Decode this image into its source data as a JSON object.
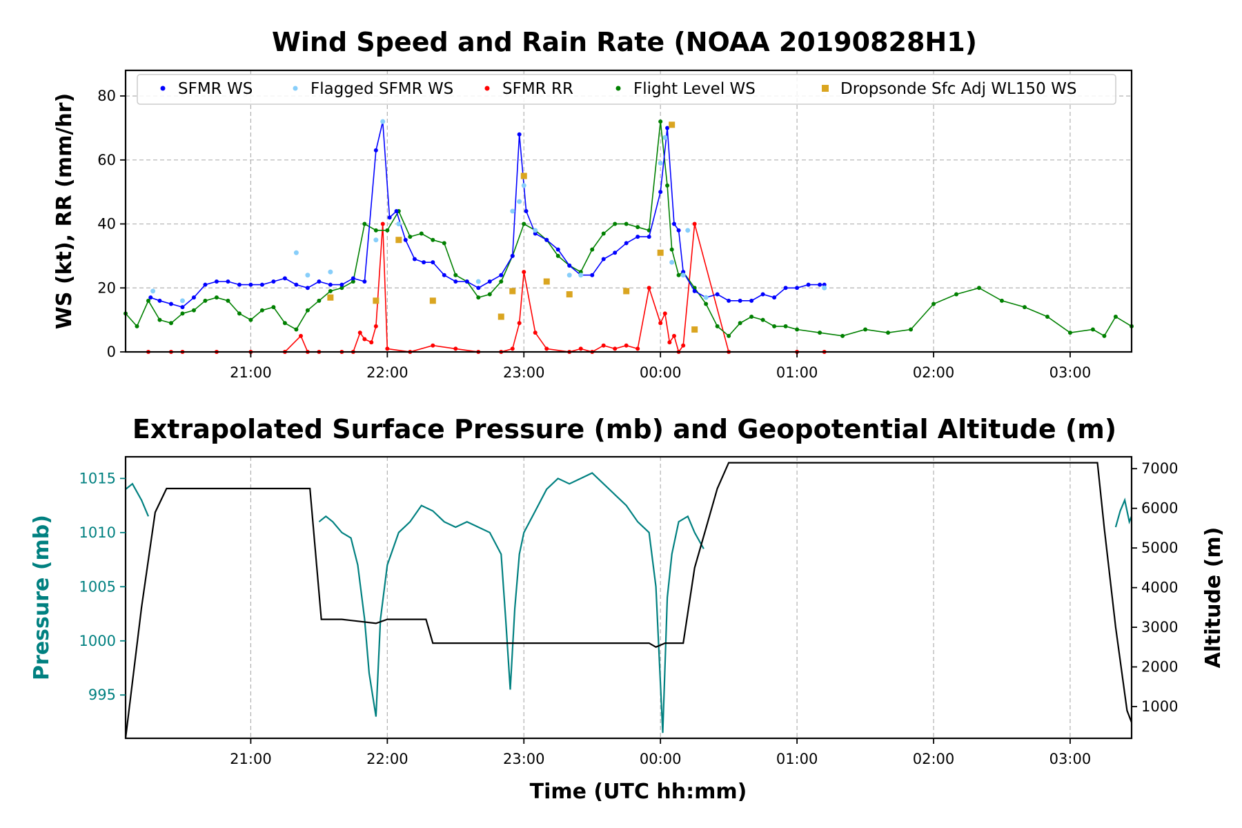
{
  "chart_data": [
    {
      "type": "scatter",
      "title": "Wind Speed and Rain Rate (NOAA 20190828H1)",
      "xlabel": "",
      "ylabel": "WS (kt), RR (mm/hr)",
      "xlim": [
        "20:05",
        "03:27"
      ],
      "ylim": [
        0,
        88
      ],
      "x_ticks": [
        "21:00",
        "22:00",
        "23:00",
        "00:00",
        "01:00",
        "02:00",
        "03:00"
      ],
      "y_ticks": [
        "0",
        "20",
        "40",
        "60",
        "80"
      ],
      "grid": true,
      "legend_position": "top",
      "legend": [
        "SFMR WS",
        "Flagged SFMR WS",
        "SFMR RR",
        "Flight Level WS",
        "Dropsonde Sfc Adj WL150 WS"
      ],
      "colors": {
        "sfmr_ws": "#0000ff",
        "flagged_sfmr_ws": "#87cefa",
        "sfmr_rr": "#ff0000",
        "flight_level_ws": "#008000",
        "dropsonde": "#daa520"
      },
      "series": [
        {
          "name": "SFMR WS",
          "x": [
            "20:16",
            "20:20",
            "20:25",
            "20:30",
            "20:35",
            "20:40",
            "20:45",
            "20:50",
            "20:55",
            "21:00",
            "21:05",
            "21:10",
            "21:15",
            "21:20",
            "21:25",
            "21:30",
            "21:35",
            "21:40",
            "21:45",
            "21:50",
            "21:55",
            "21:58",
            "22:01",
            "22:04",
            "22:08",
            "22:12",
            "22:16",
            "22:20",
            "22:25",
            "22:30",
            "22:35",
            "22:40",
            "22:45",
            "22:50",
            "22:55",
            "22:58",
            "23:01",
            "23:05",
            "23:10",
            "23:15",
            "23:20",
            "23:25",
            "23:30",
            "23:35",
            "23:40",
            "23:45",
            "23:50",
            "23:55",
            "00:00",
            "00:03",
            "00:06",
            "00:08",
            "00:10",
            "00:15",
            "00:20",
            "00:25",
            "00:30",
            "00:35",
            "00:40",
            "00:45",
            "00:50",
            "00:55",
            "01:00",
            "01:05",
            "01:10",
            "01:12"
          ],
          "values": [
            17,
            16,
            15,
            14,
            17,
            21,
            22,
            22,
            21,
            21,
            21,
            22,
            23,
            21,
            20,
            22,
            21,
            21,
            23,
            22,
            63,
            72,
            42,
            44,
            35,
            29,
            28,
            28,
            24,
            22,
            22,
            20,
            22,
            24,
            30,
            68,
            44,
            37,
            35,
            32,
            27,
            24,
            24,
            29,
            31,
            34,
            36,
            36,
            50,
            70,
            40,
            38,
            25,
            19,
            17,
            18,
            16,
            16,
            16,
            18,
            17,
            20,
            20,
            21,
            21,
            21
          ]
        },
        {
          "name": "Flagged SFMR WS",
          "x": [
            "20:17",
            "20:30",
            "21:20",
            "21:25",
            "21:35",
            "21:55",
            "21:58",
            "22:05",
            "22:40",
            "22:55",
            "22:58",
            "23:00",
            "23:05",
            "23:20",
            "23:25",
            "00:00",
            "00:02",
            "00:05",
            "00:10",
            "00:12",
            "00:20",
            "01:12"
          ],
          "values": [
            19,
            16,
            31,
            24,
            25,
            35,
            72,
            40,
            22,
            44,
            47,
            52,
            38,
            24,
            24,
            59,
            67,
            28,
            24,
            38,
            17,
            20
          ]
        },
        {
          "name": "SFMR RR",
          "x": [
            "20:15",
            "20:25",
            "20:30",
            "20:45",
            "21:00",
            "21:15",
            "21:22",
            "21:25",
            "21:30",
            "21:40",
            "21:45",
            "21:48",
            "21:50",
            "21:53",
            "21:55",
            "21:58",
            "22:00",
            "22:10",
            "22:20",
            "22:30",
            "22:40",
            "22:50",
            "22:55",
            "22:58",
            "23:00",
            "23:05",
            "23:10",
            "23:20",
            "23:25",
            "23:30",
            "23:35",
            "23:40",
            "23:45",
            "23:50",
            "23:55",
            "00:00",
            "00:02",
            "00:04",
            "00:06",
            "00:08",
            "00:10",
            "00:15",
            "00:30",
            "01:00",
            "01:12"
          ],
          "values": [
            0,
            0,
            0,
            0,
            0,
            0,
            5,
            0,
            0,
            0,
            0,
            6,
            4,
            3,
            8,
            40,
            1,
            0,
            2,
            1,
            0,
            0,
            1,
            9,
            25,
            6,
            1,
            0,
            1,
            0,
            2,
            1,
            2,
            1,
            20,
            9,
            12,
            3,
            5,
            0,
            2,
            40,
            0,
            0,
            0
          ]
        },
        {
          "name": "Flight Level WS",
          "x": [
            "20:05",
            "20:10",
            "20:15",
            "20:20",
            "20:25",
            "20:30",
            "20:35",
            "20:40",
            "20:45",
            "20:50",
            "20:55",
            "21:00",
            "21:05",
            "21:10",
            "21:15",
            "21:20",
            "21:25",
            "21:30",
            "21:35",
            "21:40",
            "21:45",
            "21:50",
            "21:55",
            "22:00",
            "22:05",
            "22:10",
            "22:15",
            "22:20",
            "22:25",
            "22:30",
            "22:35",
            "22:40",
            "22:45",
            "22:50",
            "22:55",
            "23:00",
            "23:05",
            "23:10",
            "23:15",
            "23:20",
            "23:25",
            "23:30",
            "23:35",
            "23:40",
            "23:45",
            "23:50",
            "23:55",
            "00:00",
            "00:03",
            "00:05",
            "00:08",
            "00:10",
            "00:15",
            "00:20",
            "00:25",
            "00:30",
            "00:35",
            "00:40",
            "00:45",
            "00:50",
            "00:55",
            "01:00",
            "01:10",
            "01:20",
            "01:30",
            "01:40",
            "01:50",
            "02:00",
            "02:10",
            "02:20",
            "02:30",
            "02:40",
            "02:50",
            "03:00",
            "03:10",
            "03:15",
            "03:20",
            "03:27"
          ],
          "values": [
            12,
            8,
            16,
            10,
            9,
            12,
            13,
            16,
            17,
            16,
            12,
            10,
            13,
            14,
            9,
            7,
            13,
            16,
            19,
            20,
            22,
            40,
            38,
            38,
            44,
            36,
            37,
            35,
            34,
            24,
            22,
            17,
            18,
            22,
            30,
            40,
            38,
            35,
            30,
            27,
            25,
            32,
            37,
            40,
            40,
            39,
            38,
            72,
            52,
            32,
            24,
            25,
            20,
            15,
            8,
            5,
            9,
            11,
            10,
            8,
            8,
            7,
            6,
            5,
            7,
            6,
            7,
            15,
            18,
            20,
            16,
            14,
            11,
            6,
            7,
            5,
            11,
            8
          ]
        },
        {
          "name": "Dropsonde Sfc Adj WL150 WS",
          "x": [
            "21:35",
            "21:55",
            "22:05",
            "22:20",
            "22:50",
            "22:55",
            "23:00",
            "23:10",
            "23:20",
            "23:45",
            "00:00",
            "00:05",
            "00:15"
          ],
          "values": [
            17,
            16,
            35,
            16,
            11,
            19,
            55,
            22,
            18,
            19,
            31,
            71,
            7
          ]
        }
      ]
    },
    {
      "type": "line",
      "title": "Extrapolated Surface Pressure (mb) and Geopotential Altitude (m)",
      "xlabel": "Time (UTC hh:mm)",
      "ylabel": "Pressure (mb)",
      "y2label": "Altitude (m)",
      "xlim": [
        "20:05",
        "03:27"
      ],
      "ylim": [
        991,
        1017
      ],
      "y2lim": [
        200,
        7300
      ],
      "x_ticks": [
        "21:00",
        "22:00",
        "23:00",
        "00:00",
        "01:00",
        "02:00",
        "03:00"
      ],
      "y_ticks": [
        "995",
        "1000",
        "1005",
        "1010",
        "1015"
      ],
      "y2_ticks": [
        "1000",
        "2000",
        "3000",
        "4000",
        "5000",
        "6000",
        "7000"
      ],
      "grid": true,
      "colors": {
        "pressure": "#008080",
        "altitude": "#000000"
      },
      "series": [
        {
          "name": "Pressure",
          "segments": [
            {
              "x": [
                "20:05",
                "20:08",
                "20:12",
                "20:15"
              ],
              "values": [
                1014,
                1014.5,
                1013,
                1011.5
              ]
            },
            {
              "x": [
                "21:30",
                "21:33",
                "21:36",
                "21:40",
                "21:44",
                "21:47",
                "21:50",
                "21:52",
                "21:55",
                "21:57",
                "22:00",
                "22:05",
                "22:10",
                "22:15",
                "22:20",
                "22:25",
                "22:30",
                "22:35",
                "22:40",
                "22:45",
                "22:50",
                "22:52",
                "22:54",
                "22:56",
                "22:58",
                "23:00",
                "23:05",
                "23:10",
                "23:15",
                "23:20",
                "23:25",
                "23:30",
                "23:35",
                "23:40",
                "23:45",
                "23:50",
                "23:55",
                "23:58",
                "00:01",
                "00:03",
                "00:05",
                "00:08",
                "00:12",
                "00:15",
                "00:19"
              ],
              "values": [
                1011,
                1011.5,
                1011,
                1010,
                1009.5,
                1007,
                1002,
                997,
                993,
                1002,
                1007,
                1010,
                1011,
                1012.5,
                1012,
                1011,
                1010.5,
                1011,
                1010.5,
                1010,
                1008,
                1002,
                995.5,
                1003,
                1008,
                1010,
                1012,
                1014,
                1015,
                1014.5,
                1015,
                1015.5,
                1014.5,
                1013.5,
                1012.5,
                1011,
                1010,
                1005,
                991.5,
                1004,
                1008,
                1011,
                1011.5,
                1010,
                1008.5
              ]
            },
            {
              "x": [
                "03:20",
                "03:22",
                "03:24",
                "03:26",
                "03:27"
              ],
              "values": [
                1010.5,
                1012,
                1013,
                1011,
                1011.5
              ]
            }
          ]
        },
        {
          "name": "Altitude",
          "x": [
            "20:05",
            "20:12",
            "20:18",
            "20:23",
            "20:30",
            "21:00",
            "21:24",
            "21:26",
            "21:31",
            "21:40",
            "21:55",
            "22:00",
            "22:10",
            "22:17",
            "22:20",
            "22:30",
            "22:50",
            "23:00",
            "23:20",
            "23:40",
            "23:55",
            "23:58",
            "00:02",
            "00:06",
            "00:10",
            "00:15",
            "00:20",
            "00:25",
            "00:30",
            "00:35",
            "00:40",
            "01:00",
            "02:00",
            "03:00",
            "03:12",
            "03:15",
            "03:20",
            "03:25",
            "03:27"
          ],
          "values": [
            200,
            3500,
            5900,
            6500,
            6500,
            6500,
            6500,
            6500,
            3200,
            3200,
            3100,
            3200,
            3200,
            3200,
            2600,
            2600,
            2600,
            2600,
            2600,
            2600,
            2600,
            2500,
            2600,
            2600,
            2600,
            4500,
            5500,
            6500,
            7150,
            7150,
            7150,
            7150,
            7150,
            7150,
            7150,
            5500,
            3000,
            900,
            600
          ]
        }
      ]
    }
  ]
}
